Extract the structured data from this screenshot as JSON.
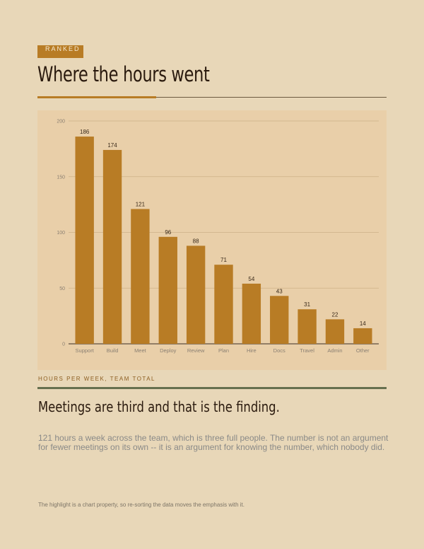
{
  "tag": "RANKED",
  "title": "Where the hours went",
  "caption": "HOURS PER WEEK, TEAM TOTAL",
  "headline": "Meetings are third and that is the finding.",
  "body": "121 hours a week across the team, which is three full people. The number is not an argument for fewer meetings on its own -- it is an argument for knowing the number, which nobody did.",
  "footnote": "The highlight is a chart property, so re-sorting the data moves the emphasis with it.",
  "colors": {
    "background": "#e8d7b8",
    "panel": "#e9cfa9",
    "bar": "#b87c25",
    "accent": "#b87c25",
    "divider": "#66704f"
  },
  "chart_data": {
    "type": "bar",
    "categories": [
      "Support",
      "Build",
      "Meet",
      "Deploy",
      "Review",
      "Plan",
      "Hire",
      "Docs",
      "Travel",
      "Admin",
      "Other"
    ],
    "values": [
      186,
      174,
      121,
      96,
      88,
      71,
      54,
      43,
      31,
      22,
      14
    ],
    "ylim": [
      0,
      200
    ],
    "yticks": [
      0,
      50,
      100,
      150,
      200
    ],
    "grid": true,
    "title": "",
    "xlabel": "",
    "ylabel": ""
  }
}
